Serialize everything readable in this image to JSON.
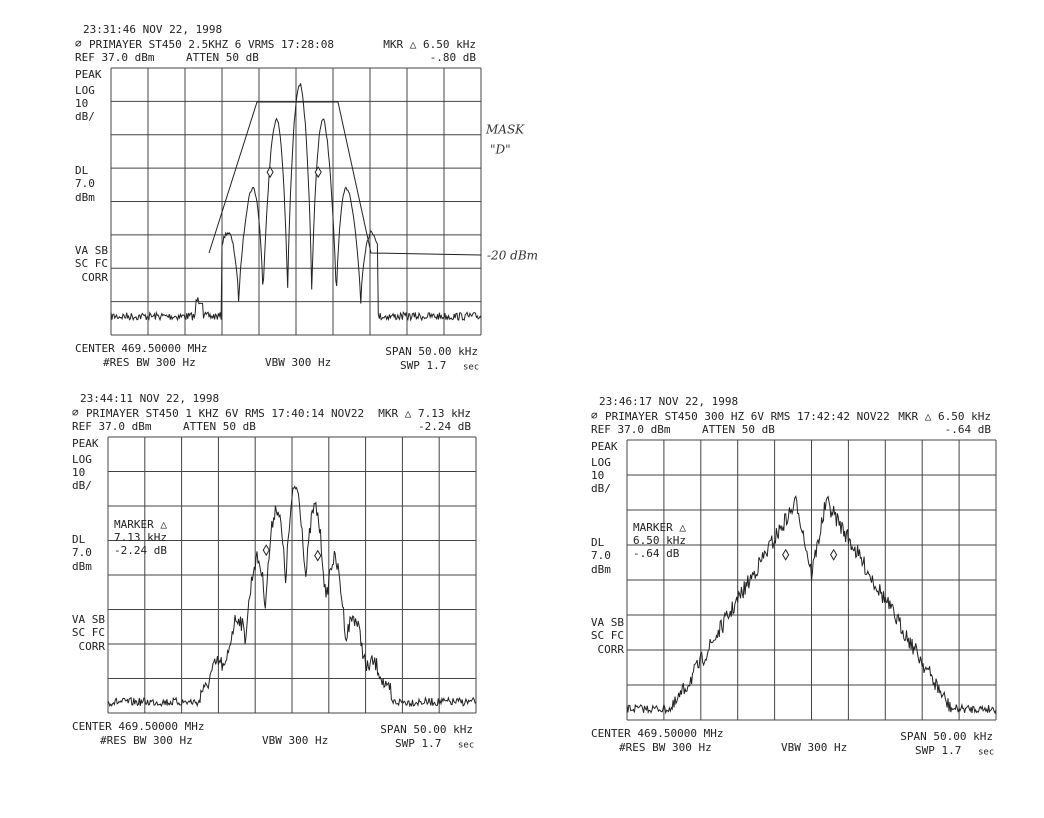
{
  "panels": [
    {
      "timestamp": "23:31:46 NOV 22, 1998",
      "header": "PRIMAYER ST450 2.5KHZ 6 VRMS 17:28:08",
      "marker_readout": "MKR △ 6.50 kHz",
      "reference": "REF 37.0 dBm",
      "attenuation": "ATTEN 50 dB",
      "marker_level": "-.80 dB",
      "side_labels": [
        "PEAK",
        "LOG",
        "10",
        "dB/",
        "DL",
        "7.0",
        "dBm",
        "VA SB",
        "SC FC",
        "CORR"
      ],
      "center": "CENTER 469.50000 MHz",
      "res_bw": "#RES BW 300 Hz",
      "vbw": "VBW 300 Hz",
      "span": "SPAN 50.00 kHz",
      "sweep": "SWP 1.7",
      "sweep_unit": "sec"
    },
    {
      "timestamp": "23:44:11 NOV 22, 1998",
      "header": "PRIMAYER ST450 1 KHZ 6V RMS 17:40:14 NOV22",
      "marker_readout": "MKR △ 7.13 kHz",
      "reference": "REF 37.0 dBm",
      "attenuation": "ATTEN 50 dB",
      "marker_level": "-2.24 dB",
      "side_labels": [
        "PEAK",
        "LOG",
        "10",
        "dB/",
        "DL",
        "7.0",
        "dBm",
        "VA SB",
        "SC FC",
        "CORR"
      ],
      "marker_box": {
        "title": "MARKER △",
        "delta": "7.13 kHz",
        "level": "-2.24 dB"
      },
      "center": "CENTER 469.50000 MHz",
      "res_bw": "#RES BW 300 Hz",
      "vbw": "VBW 300 Hz",
      "span": "SPAN 50.00 kHz",
      "sweep": "SWP 1.7",
      "sweep_unit": "sec"
    },
    {
      "timestamp": "23:46:17 NOV 22, 1998",
      "header": "PRIMAYER ST450 300 HZ 6V RMS 17:42:42 NOV22",
      "marker_readout": "MKR △ 6.50 kHz",
      "reference": "REF 37.0 dBm",
      "attenuation": "ATTEN 50 dB",
      "marker_level": "-.64 dB",
      "side_labels": [
        "PEAK",
        "LOG",
        "10",
        "dB/",
        "DL",
        "7.0",
        "dBm",
        "VA SB",
        "SC FC",
        "CORR"
      ],
      "marker_box": {
        "title": "MARKER △",
        "delta": "6.50 kHz",
        "level": "-.64 dB"
      },
      "center": "CENTER 469.50000 MHz",
      "res_bw": "#RES BW 300 Hz",
      "vbw": "VBW 300 Hz",
      "span": "SPAN 50.00 kHz",
      "sweep": "SWP 1.7",
      "sweep_unit": "sec"
    }
  ],
  "annotations": {
    "mask": "MASK",
    "mask_id": "\"D\"",
    "level": "-20 dBm"
  }
}
